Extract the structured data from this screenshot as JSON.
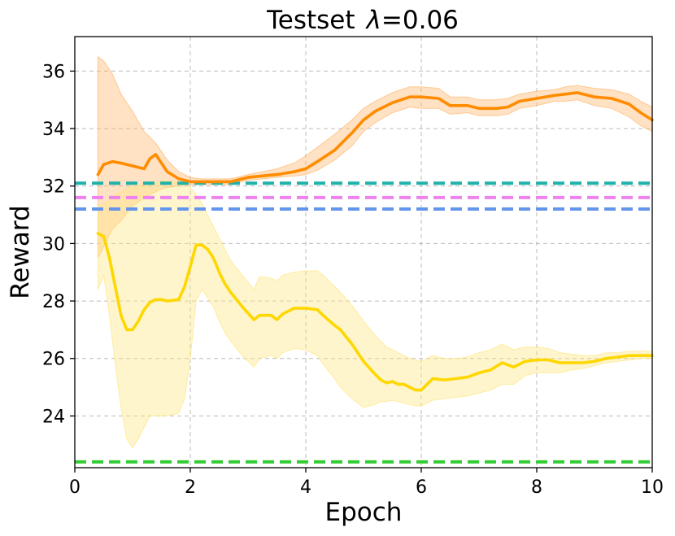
{
  "chart_data": {
    "type": "line",
    "title_prefix": "Testset",
    "title_symbol": "λ",
    "title_suffix": "=0.06",
    "xlabel": "Epoch",
    "ylabel": "Reward",
    "xlim": [
      0,
      10
    ],
    "ylim": [
      22.2,
      37.2
    ],
    "xticks": [
      "0",
      "2",
      "4",
      "6",
      "8",
      "10"
    ],
    "yticks": [
      "24",
      "26",
      "28",
      "30",
      "32",
      "34",
      "36"
    ],
    "grid": true,
    "legend": "none",
    "series": [
      {
        "color": "#FF8C00",
        "band_color": "#FFB870",
        "x": [
          0.4,
          0.5,
          0.65,
          0.8,
          1.0,
          1.2,
          1.3,
          1.4,
          1.5,
          1.6,
          1.8,
          2.0,
          2.2,
          2.5,
          2.7,
          3.0,
          3.5,
          3.8,
          4.0,
          4.2,
          4.5,
          4.8,
          5.0,
          5.2,
          5.5,
          5.8,
          6.0,
          6.3,
          6.5,
          6.8,
          7.0,
          7.3,
          7.5,
          7.7,
          8.0,
          8.3,
          8.5,
          8.7,
          9.0,
          9.3,
          9.6,
          9.8,
          10.0
        ],
        "values": [
          32.4,
          32.75,
          32.85,
          32.8,
          32.7,
          32.6,
          32.95,
          33.1,
          32.8,
          32.5,
          32.25,
          32.15,
          32.15,
          32.15,
          32.15,
          32.3,
          32.4,
          32.5,
          32.6,
          32.85,
          33.25,
          33.85,
          34.3,
          34.6,
          34.9,
          35.1,
          35.1,
          35.05,
          34.8,
          34.8,
          34.7,
          34.7,
          34.75,
          34.95,
          35.05,
          35.15,
          35.2,
          35.25,
          35.1,
          35.05,
          34.85,
          34.55,
          34.3
        ],
        "lower": [
          29.5,
          29.9,
          30.5,
          30.8,
          31.3,
          31.6,
          31.7,
          31.8,
          31.9,
          31.95,
          32.0,
          32.05,
          32.05,
          32.05,
          32.05,
          32.2,
          32.3,
          32.35,
          32.4,
          32.55,
          32.9,
          33.4,
          33.9,
          34.2,
          34.55,
          34.75,
          34.7,
          34.7,
          34.5,
          34.55,
          34.45,
          34.45,
          34.5,
          34.7,
          34.8,
          34.95,
          34.95,
          35.0,
          34.8,
          34.7,
          34.4,
          34.1,
          33.9
        ],
        "upper": [
          36.5,
          36.35,
          35.9,
          35.2,
          34.6,
          33.9,
          33.7,
          33.5,
          33.2,
          32.9,
          32.5,
          32.3,
          32.25,
          32.25,
          32.25,
          32.4,
          32.6,
          32.8,
          33.05,
          33.35,
          33.8,
          34.3,
          34.7,
          34.95,
          35.25,
          35.45,
          35.45,
          35.4,
          35.1,
          35.1,
          35.0,
          35.0,
          35.05,
          35.2,
          35.3,
          35.35,
          35.45,
          35.5,
          35.4,
          35.35,
          35.2,
          34.95,
          34.75
        ]
      },
      {
        "color": "#FFD700",
        "band_color": "#FFE680",
        "x": [
          0.4,
          0.5,
          0.6,
          0.7,
          0.8,
          0.9,
          1.0,
          1.1,
          1.2,
          1.3,
          1.4,
          1.5,
          1.6,
          1.8,
          1.9,
          2.0,
          2.1,
          2.2,
          2.3,
          2.4,
          2.5,
          2.6,
          2.7,
          2.9,
          3.1,
          3.2,
          3.4,
          3.5,
          3.6,
          3.8,
          4.0,
          4.2,
          4.3,
          4.5,
          4.6,
          4.8,
          5.0,
          5.2,
          5.3,
          5.4,
          5.5,
          5.6,
          5.7,
          5.8,
          5.9,
          6.0,
          6.1,
          6.2,
          6.4,
          6.6,
          6.8,
          7.0,
          7.2,
          7.4,
          7.6,
          7.8,
          8.0,
          8.2,
          8.4,
          8.6,
          8.8,
          9.0,
          9.2,
          9.4,
          9.6,
          9.8,
          10.0
        ],
        "values": [
          30.35,
          30.25,
          29.5,
          28.5,
          27.5,
          27.0,
          27.0,
          27.3,
          27.7,
          27.95,
          28.05,
          28.05,
          28.0,
          28.05,
          28.5,
          29.2,
          29.95,
          29.95,
          29.8,
          29.5,
          29.0,
          28.6,
          28.3,
          27.8,
          27.35,
          27.5,
          27.5,
          27.35,
          27.55,
          27.75,
          27.75,
          27.7,
          27.5,
          27.15,
          27.0,
          26.5,
          25.9,
          25.45,
          25.25,
          25.15,
          25.2,
          25.1,
          25.1,
          25.0,
          24.9,
          24.9,
          25.1,
          25.3,
          25.25,
          25.3,
          25.35,
          25.5,
          25.6,
          25.85,
          25.7,
          25.9,
          25.95,
          25.95,
          25.85,
          25.85,
          25.85,
          25.9,
          26.0,
          26.05,
          26.1,
          26.1,
          26.1
        ],
        "lower": [
          28.4,
          28.9,
          27.5,
          25.8,
          24.3,
          23.2,
          22.9,
          23.2,
          23.6,
          24.0,
          24.0,
          24.0,
          24.0,
          24.1,
          24.6,
          26.0,
          28.0,
          28.4,
          28.1,
          27.8,
          27.3,
          26.9,
          26.6,
          26.1,
          25.7,
          26.0,
          26.1,
          26.0,
          26.2,
          26.35,
          26.3,
          26.1,
          25.8,
          25.3,
          25.0,
          24.6,
          24.3,
          24.4,
          24.5,
          24.5,
          24.55,
          24.5,
          24.45,
          24.4,
          24.35,
          24.35,
          24.45,
          24.55,
          24.6,
          24.65,
          24.7,
          24.8,
          24.9,
          25.1,
          25.1,
          25.4,
          25.5,
          25.5,
          25.5,
          25.6,
          25.65,
          25.75,
          25.85,
          25.9,
          25.95,
          26.0,
          26.0
        ],
        "upper": [
          31.3,
          31.4,
          31.5,
          31.7,
          31.8,
          31.9,
          32.0,
          32.0,
          32.1,
          32.1,
          32.1,
          32.2,
          32.2,
          32.1,
          32.05,
          31.95,
          31.7,
          31.4,
          31.0,
          30.6,
          30.2,
          29.8,
          29.4,
          28.9,
          28.4,
          28.85,
          28.8,
          28.7,
          28.9,
          29.0,
          29.05,
          29.05,
          28.9,
          28.5,
          28.3,
          27.85,
          27.3,
          26.8,
          26.6,
          26.4,
          26.3,
          26.2,
          26.1,
          26.0,
          25.95,
          25.9,
          26.0,
          26.1,
          26.0,
          26.0,
          26.05,
          26.2,
          26.3,
          26.5,
          26.3,
          26.4,
          26.4,
          26.35,
          26.2,
          26.15,
          26.1,
          26.1,
          26.2,
          26.2,
          26.25,
          26.25,
          26.25
        ]
      }
    ],
    "baselines": [
      {
        "y": 32.1,
        "color": "#20B2AA",
        "style": "dashed"
      },
      {
        "y": 31.6,
        "color": "#EE82EE",
        "style": "dashed"
      },
      {
        "y": 31.2,
        "color": "#6495ED",
        "style": "dashed"
      },
      {
        "y": 22.4,
        "color": "#32CD32",
        "style": "dashed"
      }
    ]
  }
}
